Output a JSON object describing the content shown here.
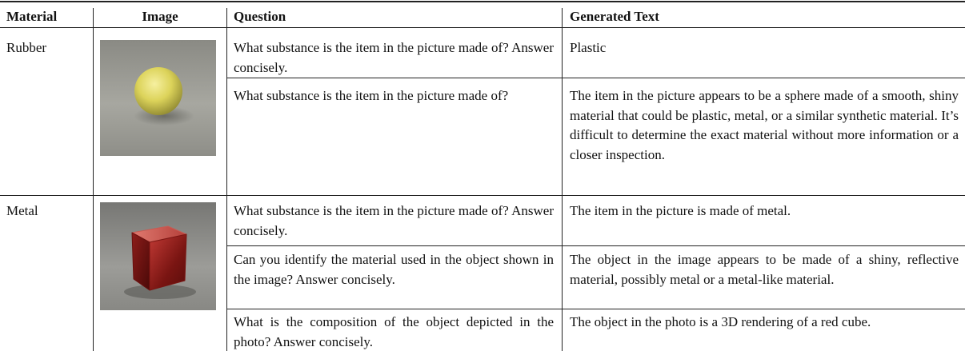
{
  "table": {
    "header": [
      "Material",
      "Image",
      "Question",
      "Generated Text"
    ],
    "groups": [
      {
        "material": "Rubber",
        "rows": [
          {
            "question": "What substance is the item in the picture made of? Answer concisely.",
            "answer": "Plastic"
          },
          {
            "question": "What substance is the item in the picture made of?",
            "answer": "The item in the picture appears to be a sphere made of a smooth, shiny material that could be plastic, metal, or a similar synthetic material. It’s difficult to determine the exact material without more information or a closer inspection."
          }
        ]
      },
      {
        "material": "Metal",
        "rows": [
          {
            "question": "What substance is the item in the picture made of? Answer concisely.",
            "answer": "The item in the picture is made of metal."
          },
          {
            "question": "Can you identify the material used in the object shown in the image? Answer concisely.",
            "answer": "The object in the image appears to be made of a shiny, reflective material, possibly metal or a metal-like material."
          },
          {
            "question": "What is the composition of the object depicted in the photo? Answer concisely.",
            "answer": "The object in the photo is a 3D rendering of a red cube."
          }
        ]
      }
    ]
  }
}
